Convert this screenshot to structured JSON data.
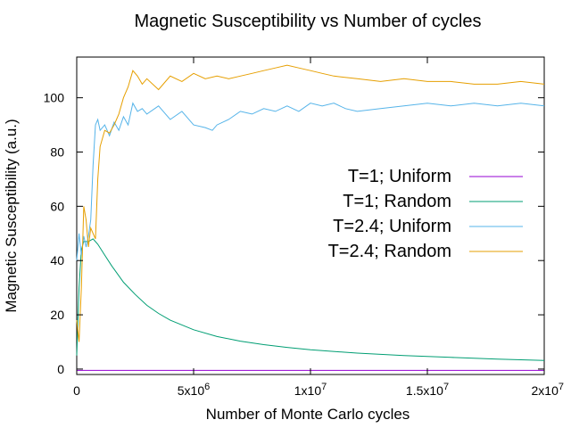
{
  "chart_data": {
    "type": "line",
    "title": "Magnetic Susceptibility vs Number of cycles",
    "xlabel": "Number of Monte Carlo cycles",
    "ylabel": "Magnetic Susceptibility (a.u.)",
    "xlim": [
      0,
      20000000
    ],
    "ylim": [
      -2,
      115
    ],
    "x_ticks": [
      {
        "value": 0,
        "base": "0",
        "exp": ""
      },
      {
        "value": 5000000,
        "base": "5x10",
        "exp": "6"
      },
      {
        "value": 10000000,
        "base": "1x10",
        "exp": "7"
      },
      {
        "value": 15000000,
        "base": "1.5x10",
        "exp": "7"
      },
      {
        "value": 20000000,
        "base": "2x10",
        "exp": "7"
      }
    ],
    "y_ticks": [
      {
        "value": 0,
        "label": "0"
      },
      {
        "value": 20,
        "label": "20"
      },
      {
        "value": 40,
        "label": "40"
      },
      {
        "value": 60,
        "label": "60"
      },
      {
        "value": 80,
        "label": "80"
      },
      {
        "value": 100,
        "label": "100"
      }
    ],
    "grid": false,
    "legend_position": "right",
    "series": [
      {
        "name": "T=1; Uniform",
        "color": "#9400d3",
        "x": [
          0,
          20000000
        ],
        "y": [
          -0.5,
          -0.5
        ]
      },
      {
        "name": "T=1; Random",
        "color": "#009e73",
        "x": [
          0,
          100000,
          200000,
          300000,
          500000,
          700000,
          900000,
          1200000,
          1500000,
          2000000,
          2500000,
          3000000,
          3500000,
          4000000,
          5000000,
          6000000,
          7000000,
          8000000,
          9000000,
          10000000,
          12000000,
          14000000,
          16000000,
          18000000,
          20000000
        ],
        "y": [
          5,
          30,
          44,
          47,
          47,
          48,
          46,
          42,
          38,
          32,
          27.5,
          23.5,
          20.5,
          18,
          14.5,
          12,
          10.3,
          9,
          8,
          7.1,
          5.9,
          5.0,
          4.3,
          3.7,
          3.2
        ]
      },
      {
        "name": "T=2.4; Uniform",
        "color": "#56b4e9",
        "x": [
          0,
          100000,
          200000,
          300000,
          400000,
          500000,
          600000,
          700000,
          800000,
          900000,
          1000000,
          1200000,
          1400000,
          1600000,
          1800000,
          2000000,
          2200000,
          2400000,
          2600000,
          2800000,
          3000000,
          3500000,
          4000000,
          4500000,
          5000000,
          5500000,
          5800000,
          6000000,
          6500000,
          7000000,
          7500000,
          8000000,
          8500000,
          9000000,
          9500000,
          10000000,
          10500000,
          11000000,
          11500000,
          12000000,
          13000000,
          14000000,
          15000000,
          16000000,
          17000000,
          18000000,
          19000000,
          20000000
        ],
        "y": [
          40,
          50,
          42,
          49,
          45,
          49,
          55,
          75,
          90,
          92,
          88,
          90,
          86,
          91,
          88,
          93,
          90,
          98,
          95,
          96,
          94,
          97,
          92,
          95,
          90,
          89,
          88,
          90,
          92,
          95,
          94,
          96,
          95,
          97,
          95,
          98,
          97,
          98,
          96,
          95,
          96,
          97,
          98,
          97,
          98,
          97,
          98,
          97
        ]
      },
      {
        "name": "T=2.4; Random",
        "color": "#e69f00",
        "x": [
          0,
          100000,
          200000,
          300000,
          400000,
          500000,
          600000,
          700000,
          800000,
          900000,
          1000000,
          1200000,
          1400000,
          1600000,
          1800000,
          2000000,
          2200000,
          2400000,
          2600000,
          2800000,
          3000000,
          3500000,
          4000000,
          4500000,
          5000000,
          5500000,
          6000000,
          6500000,
          7000000,
          7500000,
          8000000,
          8500000,
          9000000,
          9500000,
          10000000,
          10500000,
          11000000,
          12000000,
          13000000,
          14000000,
          15000000,
          16000000,
          17000000,
          18000000,
          19000000,
          20000000
        ],
        "y": [
          18,
          10,
          30,
          60,
          55,
          45,
          52,
          50,
          48,
          70,
          82,
          88,
          87,
          90,
          94,
          100,
          104,
          110,
          108,
          105,
          107,
          103,
          108,
          106,
          109,
          107,
          108,
          107,
          108,
          109,
          110,
          111,
          112,
          111,
          110,
          109,
          108,
          107,
          106,
          107,
          106,
          106,
          105,
          105,
          106,
          105
        ]
      }
    ]
  }
}
